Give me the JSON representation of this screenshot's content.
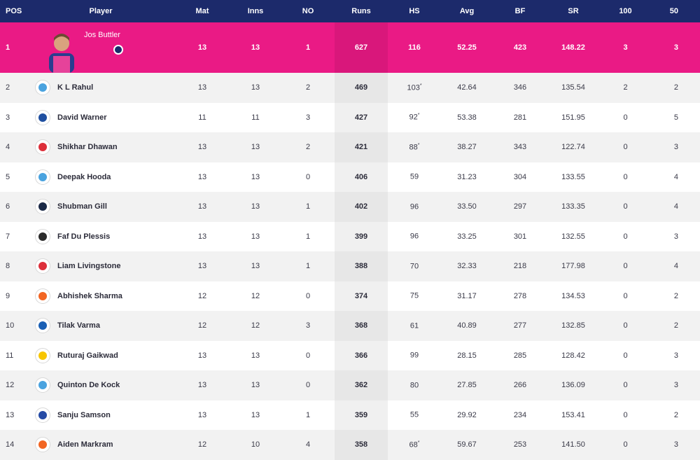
{
  "columns": [
    "POS",
    "Player",
    "Mat",
    "Inns",
    "NO",
    "Runs",
    "HS",
    "Avg",
    "BF",
    "SR",
    "100",
    "50"
  ],
  "top": {
    "pos": "1",
    "player": "Jos Buttler",
    "mat": "13",
    "inns": "13",
    "no": "1",
    "runs": "627",
    "hs": "116",
    "avg": "52.25",
    "bf": "423",
    "sr": "148.22",
    "hundreds": "3",
    "fifties": "3",
    "accent": "#ea1a85"
  },
  "rows": [
    {
      "pos": "2",
      "player": "K L Rahul",
      "mat": "13",
      "inns": "13",
      "no": "2",
      "runs": "469",
      "hs": "103",
      "star": "*",
      "avg": "42.64",
      "bf": "346",
      "sr": "135.54",
      "hundreds": "2",
      "fifties": "2",
      "team_icon": "lsg-logo-icon",
      "color": "#4aa3df"
    },
    {
      "pos": "3",
      "player": "David Warner",
      "mat": "11",
      "inns": "11",
      "no": "3",
      "runs": "427",
      "hs": "92",
      "star": "*",
      "avg": "53.38",
      "bf": "281",
      "sr": "151.95",
      "hundreds": "0",
      "fifties": "5",
      "team_icon": "dc-logo-icon",
      "color": "#1f4fa0"
    },
    {
      "pos": "4",
      "player": "Shikhar Dhawan",
      "mat": "13",
      "inns": "13",
      "no": "2",
      "runs": "421",
      "hs": "88",
      "star": "*",
      "avg": "38.27",
      "bf": "343",
      "sr": "122.74",
      "hundreds": "0",
      "fifties": "3",
      "team_icon": "pbks-logo-icon",
      "color": "#dd2f3a"
    },
    {
      "pos": "5",
      "player": "Deepak Hooda",
      "mat": "13",
      "inns": "13",
      "no": "0",
      "runs": "406",
      "hs": "59",
      "star": "",
      "avg": "31.23",
      "bf": "304",
      "sr": "133.55",
      "hundreds": "0",
      "fifties": "4",
      "team_icon": "lsg-logo-icon",
      "color": "#4aa3df"
    },
    {
      "pos": "6",
      "player": "Shubman Gill",
      "mat": "13",
      "inns": "13",
      "no": "1",
      "runs": "402",
      "hs": "96",
      "star": "",
      "avg": "33.50",
      "bf": "297",
      "sr": "133.35",
      "hundreds": "0",
      "fifties": "4",
      "team_icon": "gt-logo-icon",
      "color": "#1b2a47"
    },
    {
      "pos": "7",
      "player": "Faf Du Plessis",
      "mat": "13",
      "inns": "13",
      "no": "1",
      "runs": "399",
      "hs": "96",
      "star": "",
      "avg": "33.25",
      "bf": "301",
      "sr": "132.55",
      "hundreds": "0",
      "fifties": "3",
      "team_icon": "rcb-logo-icon",
      "color": "#2b2b2b"
    },
    {
      "pos": "8",
      "player": "Liam Livingstone",
      "mat": "13",
      "inns": "13",
      "no": "1",
      "runs": "388",
      "hs": "70",
      "star": "",
      "avg": "32.33",
      "bf": "218",
      "sr": "177.98",
      "hundreds": "0",
      "fifties": "4",
      "team_icon": "pbks-logo-icon",
      "color": "#dd2f3a"
    },
    {
      "pos": "9",
      "player": "Abhishek Sharma",
      "mat": "12",
      "inns": "12",
      "no": "0",
      "runs": "374",
      "hs": "75",
      "star": "",
      "avg": "31.17",
      "bf": "278",
      "sr": "134.53",
      "hundreds": "0",
      "fifties": "2",
      "team_icon": "srh-logo-icon",
      "color": "#f26522"
    },
    {
      "pos": "10",
      "player": "Tilak Varma",
      "mat": "12",
      "inns": "12",
      "no": "3",
      "runs": "368",
      "hs": "61",
      "star": "",
      "avg": "40.89",
      "bf": "277",
      "sr": "132.85",
      "hundreds": "0",
      "fifties": "2",
      "team_icon": "mi-logo-icon",
      "color": "#1a5fb4"
    },
    {
      "pos": "11",
      "player": "Ruturaj Gaikwad",
      "mat": "13",
      "inns": "13",
      "no": "0",
      "runs": "366",
      "hs": "99",
      "star": "",
      "avg": "28.15",
      "bf": "285",
      "sr": "128.42",
      "hundreds": "0",
      "fifties": "3",
      "team_icon": "csk-logo-icon",
      "color": "#f7c500"
    },
    {
      "pos": "12",
      "player": "Quinton De Kock",
      "mat": "13",
      "inns": "13",
      "no": "0",
      "runs": "362",
      "hs": "80",
      "star": "",
      "avg": "27.85",
      "bf": "266",
      "sr": "136.09",
      "hundreds": "0",
      "fifties": "3",
      "team_icon": "lsg-logo-icon",
      "color": "#4aa3df"
    },
    {
      "pos": "13",
      "player": "Sanju Samson",
      "mat": "13",
      "inns": "13",
      "no": "1",
      "runs": "359",
      "hs": "55",
      "star": "",
      "avg": "29.92",
      "bf": "234",
      "sr": "153.41",
      "hundreds": "0",
      "fifties": "2",
      "team_icon": "rr-logo-icon",
      "color": "#254aa5"
    },
    {
      "pos": "14",
      "player": "Aiden Markram",
      "mat": "12",
      "inns": "10",
      "no": "4",
      "runs": "358",
      "hs": "68",
      "star": "*",
      "avg": "59.67",
      "bf": "253",
      "sr": "141.50",
      "hundreds": "0",
      "fifties": "3",
      "team_icon": "srh-logo-icon",
      "color": "#f26522"
    }
  ]
}
